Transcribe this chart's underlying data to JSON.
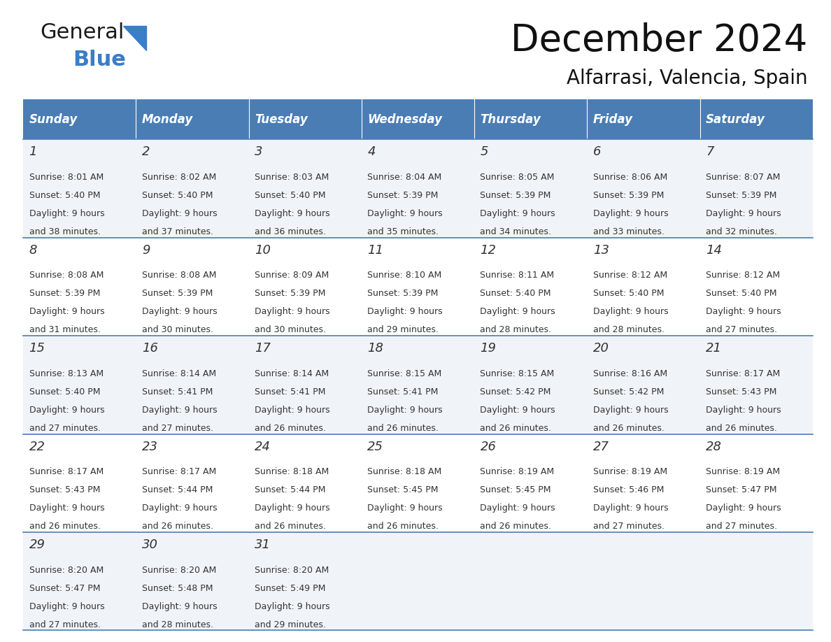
{
  "title": "December 2024",
  "subtitle": "Alfarrasi, Valencia, Spain",
  "header_color": "#4A7DB4",
  "header_text_color": "#FFFFFF",
  "background_color": "#FFFFFF",
  "cell_bg_even": "#F0F4F8",
  "cell_bg_odd": "#FFFFFF",
  "day_headers": [
    "Sunday",
    "Monday",
    "Tuesday",
    "Wednesday",
    "Thursday",
    "Friday",
    "Saturday"
  ],
  "days": [
    {
      "day": 1,
      "col": 0,
      "row": 0,
      "sunrise": "8:01 AM",
      "sunset": "5:40 PM",
      "daylight": "9 hours and 38 minutes"
    },
    {
      "day": 2,
      "col": 1,
      "row": 0,
      "sunrise": "8:02 AM",
      "sunset": "5:40 PM",
      "daylight": "9 hours and 37 minutes"
    },
    {
      "day": 3,
      "col": 2,
      "row": 0,
      "sunrise": "8:03 AM",
      "sunset": "5:40 PM",
      "daylight": "9 hours and 36 minutes"
    },
    {
      "day": 4,
      "col": 3,
      "row": 0,
      "sunrise": "8:04 AM",
      "sunset": "5:39 PM",
      "daylight": "9 hours and 35 minutes"
    },
    {
      "day": 5,
      "col": 4,
      "row": 0,
      "sunrise": "8:05 AM",
      "sunset": "5:39 PM",
      "daylight": "9 hours and 34 minutes"
    },
    {
      "day": 6,
      "col": 5,
      "row": 0,
      "sunrise": "8:06 AM",
      "sunset": "5:39 PM",
      "daylight": "9 hours and 33 minutes"
    },
    {
      "day": 7,
      "col": 6,
      "row": 0,
      "sunrise": "8:07 AM",
      "sunset": "5:39 PM",
      "daylight": "9 hours and 32 minutes"
    },
    {
      "day": 8,
      "col": 0,
      "row": 1,
      "sunrise": "8:08 AM",
      "sunset": "5:39 PM",
      "daylight": "9 hours and 31 minutes"
    },
    {
      "day": 9,
      "col": 1,
      "row": 1,
      "sunrise": "8:08 AM",
      "sunset": "5:39 PM",
      "daylight": "9 hours and 30 minutes"
    },
    {
      "day": 10,
      "col": 2,
      "row": 1,
      "sunrise": "8:09 AM",
      "sunset": "5:39 PM",
      "daylight": "9 hours and 30 minutes"
    },
    {
      "day": 11,
      "col": 3,
      "row": 1,
      "sunrise": "8:10 AM",
      "sunset": "5:39 PM",
      "daylight": "9 hours and 29 minutes"
    },
    {
      "day": 12,
      "col": 4,
      "row": 1,
      "sunrise": "8:11 AM",
      "sunset": "5:40 PM",
      "daylight": "9 hours and 28 minutes"
    },
    {
      "day": 13,
      "col": 5,
      "row": 1,
      "sunrise": "8:12 AM",
      "sunset": "5:40 PM",
      "daylight": "9 hours and 28 minutes"
    },
    {
      "day": 14,
      "col": 6,
      "row": 1,
      "sunrise": "8:12 AM",
      "sunset": "5:40 PM",
      "daylight": "9 hours and 27 minutes"
    },
    {
      "day": 15,
      "col": 0,
      "row": 2,
      "sunrise": "8:13 AM",
      "sunset": "5:40 PM",
      "daylight": "9 hours and 27 minutes"
    },
    {
      "day": 16,
      "col": 1,
      "row": 2,
      "sunrise": "8:14 AM",
      "sunset": "5:41 PM",
      "daylight": "9 hours and 27 minutes"
    },
    {
      "day": 17,
      "col": 2,
      "row": 2,
      "sunrise": "8:14 AM",
      "sunset": "5:41 PM",
      "daylight": "9 hours and 26 minutes"
    },
    {
      "day": 18,
      "col": 3,
      "row": 2,
      "sunrise": "8:15 AM",
      "sunset": "5:41 PM",
      "daylight": "9 hours and 26 minutes"
    },
    {
      "day": 19,
      "col": 4,
      "row": 2,
      "sunrise": "8:15 AM",
      "sunset": "5:42 PM",
      "daylight": "9 hours and 26 minutes"
    },
    {
      "day": 20,
      "col": 5,
      "row": 2,
      "sunrise": "8:16 AM",
      "sunset": "5:42 PM",
      "daylight": "9 hours and 26 minutes"
    },
    {
      "day": 21,
      "col": 6,
      "row": 2,
      "sunrise": "8:17 AM",
      "sunset": "5:43 PM",
      "daylight": "9 hours and 26 minutes"
    },
    {
      "day": 22,
      "col": 0,
      "row": 3,
      "sunrise": "8:17 AM",
      "sunset": "5:43 PM",
      "daylight": "9 hours and 26 minutes"
    },
    {
      "day": 23,
      "col": 1,
      "row": 3,
      "sunrise": "8:17 AM",
      "sunset": "5:44 PM",
      "daylight": "9 hours and 26 minutes"
    },
    {
      "day": 24,
      "col": 2,
      "row": 3,
      "sunrise": "8:18 AM",
      "sunset": "5:44 PM",
      "daylight": "9 hours and 26 minutes"
    },
    {
      "day": 25,
      "col": 3,
      "row": 3,
      "sunrise": "8:18 AM",
      "sunset": "5:45 PM",
      "daylight": "9 hours and 26 minutes"
    },
    {
      "day": 26,
      "col": 4,
      "row": 3,
      "sunrise": "8:19 AM",
      "sunset": "5:45 PM",
      "daylight": "9 hours and 26 minutes"
    },
    {
      "day": 27,
      "col": 5,
      "row": 3,
      "sunrise": "8:19 AM",
      "sunset": "5:46 PM",
      "daylight": "9 hours and 27 minutes"
    },
    {
      "day": 28,
      "col": 6,
      "row": 3,
      "sunrise": "8:19 AM",
      "sunset": "5:47 PM",
      "daylight": "9 hours and 27 minutes"
    },
    {
      "day": 29,
      "col": 0,
      "row": 4,
      "sunrise": "8:20 AM",
      "sunset": "5:47 PM",
      "daylight": "9 hours and 27 minutes"
    },
    {
      "day": 30,
      "col": 1,
      "row": 4,
      "sunrise": "8:20 AM",
      "sunset": "5:48 PM",
      "daylight": "9 hours and 28 minutes"
    },
    {
      "day": 31,
      "col": 2,
      "row": 4,
      "sunrise": "8:20 AM",
      "sunset": "5:49 PM",
      "daylight": "9 hours and 29 minutes"
    }
  ],
  "num_rows": 5,
  "logo_color_general": "#1a1a1a",
  "logo_color_blue": "#3a7dc9",
  "logo_triangle_color": "#3a7dc9",
  "title_fontsize": 38,
  "subtitle_fontsize": 20,
  "header_fontsize": 12,
  "day_num_fontsize": 13,
  "cell_fontsize": 9
}
